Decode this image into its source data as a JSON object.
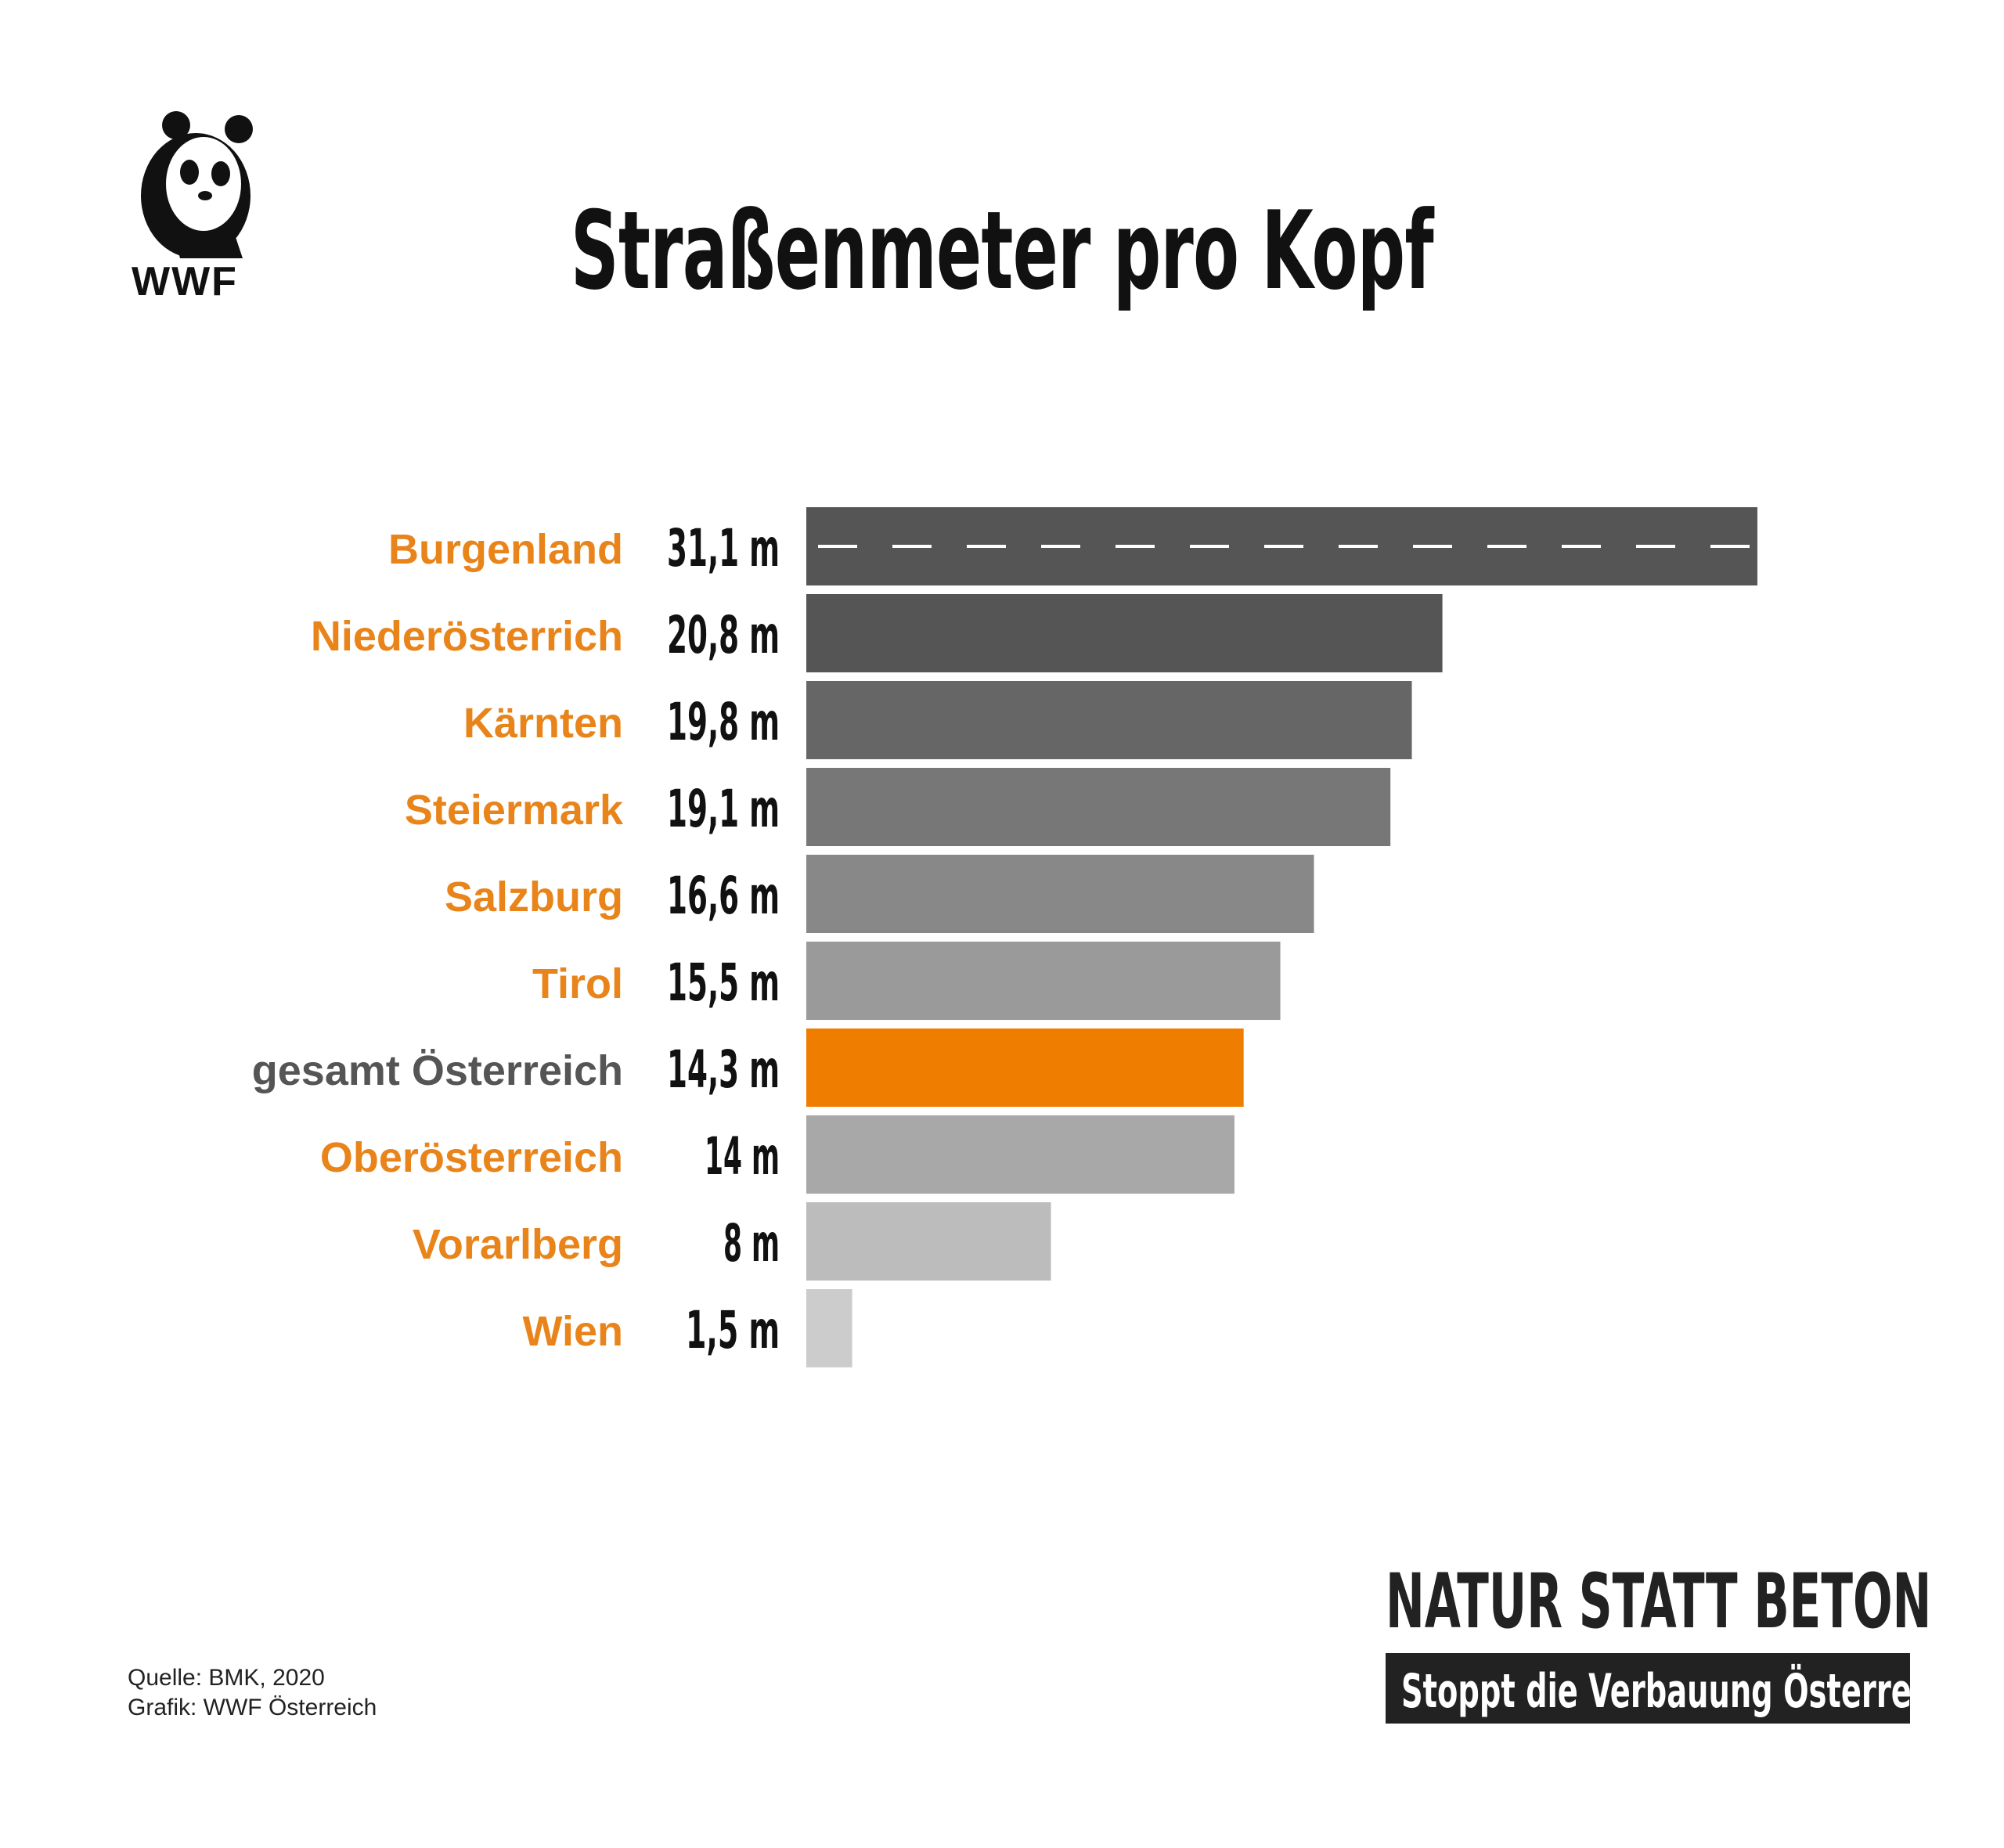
{
  "branding": {
    "logo_text": "WWF",
    "logo_icon": "panda-icon"
  },
  "title": "Straßenmeter pro Kopf",
  "footer": {
    "source": "Quelle: BMK, 2020",
    "credit": "Grafik: WWF Österreich"
  },
  "campaign": {
    "slogan": "NATUR STATT BETON",
    "tagline": "Stoppt die Verbauung Österreichs!"
  },
  "colors": {
    "label_orange": "#E8841A",
    "label_gray": "#555555",
    "highlight_bar": "#EF7D00",
    "road_dash": "#ffffff"
  },
  "chart_data": {
    "type": "bar",
    "orientation": "horizontal",
    "title": "Straßenmeter pro Kopf",
    "xlabel": "",
    "ylabel": "",
    "unit": "m",
    "grid": false,
    "xlim": [
      0,
      31.1
    ],
    "categories": [
      "Burgenland",
      "Niederösterrich",
      "Kärnten",
      "Steiermark",
      "Salzburg",
      "Tirol",
      "gesamt Österreich",
      "Oberösterreich",
      "Vorarlberg",
      "Wien"
    ],
    "values": [
      31.1,
      20.8,
      19.8,
      19.1,
      16.6,
      15.5,
      14.3,
      14,
      8,
      1.5
    ],
    "value_labels": [
      "31,1 m",
      "20,8 m",
      "19,8 m",
      "19,1 m",
      "16,6 m",
      "15,5 m",
      "14,3 m",
      "14 m",
      "8 m",
      "1,5 m"
    ],
    "highlight": "gesamt Österreich",
    "bar_colors": [
      "#555555",
      "#555555",
      "#666666",
      "#777777",
      "#888888",
      "#9a9a9a",
      "#EF7D00",
      "#a8a8a8",
      "#bcbcbc",
      "#cccccc"
    ]
  }
}
